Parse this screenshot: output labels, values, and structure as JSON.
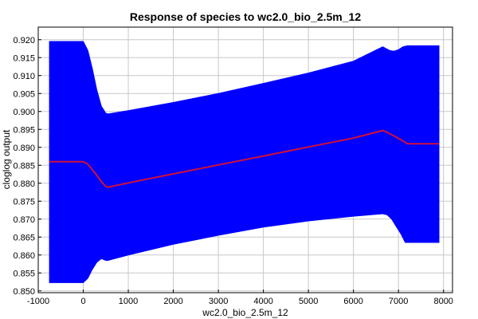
{
  "chart_data": {
    "type": "area",
    "title": "Response of species to wc2.0_bio_2.5m_12",
    "xlabel": "wc2.0_bio_2.5m_12",
    "ylabel": "cloglog output",
    "xlim": [
      -1000,
      8200
    ],
    "ylim": [
      0.8495,
      0.9235
    ],
    "grid": true,
    "xticks": [
      -1000,
      0,
      1000,
      2000,
      3000,
      4000,
      5000,
      6000,
      7000,
      8000
    ],
    "yticks": [
      0.85,
      0.855,
      0.86,
      0.865,
      0.87,
      0.875,
      0.88,
      0.885,
      0.89,
      0.895,
      0.9,
      0.905,
      0.91,
      0.915,
      0.92
    ],
    "series": [
      {
        "role": "upper",
        "color": "#0000ff",
        "x": [
          -750,
          0,
          100,
          200,
          300,
          400,
          500,
          550,
          1000,
          2000,
          3000,
          4000,
          5000,
          6000,
          6650,
          6800,
          6900,
          7000,
          7100,
          7200,
          7900
        ],
        "y": [
          0.9195,
          0.9195,
          0.917,
          0.912,
          0.906,
          0.9015,
          0.8995,
          0.8993,
          0.9002,
          0.9025,
          0.905,
          0.9078,
          0.9107,
          0.914,
          0.918,
          0.917,
          0.9168,
          0.9172,
          0.918,
          0.9183,
          0.9183
        ]
      },
      {
        "role": "lower",
        "color": "#0000ff",
        "x": [
          -750,
          0,
          100,
          200,
          300,
          400,
          500,
          550,
          1000,
          2000,
          3000,
          4000,
          5000,
          6000,
          6650,
          6750,
          6850,
          6950,
          7050,
          7150,
          7900
        ],
        "y": [
          0.8523,
          0.8523,
          0.8535,
          0.856,
          0.858,
          0.859,
          0.8585,
          0.8585,
          0.86,
          0.863,
          0.8655,
          0.8678,
          0.8695,
          0.8708,
          0.8715,
          0.8712,
          0.87,
          0.868,
          0.866,
          0.8635,
          0.8635
        ]
      },
      {
        "role": "mean",
        "color": "#d0103a",
        "x": [
          -750,
          0,
          100,
          200,
          300,
          400,
          500,
          550,
          1000,
          2000,
          3000,
          4000,
          5000,
          6000,
          6650,
          6750,
          7000,
          7200,
          7900
        ],
        "y": [
          0.886,
          0.886,
          0.8853,
          0.8838,
          0.8822,
          0.8805,
          0.8791,
          0.8789,
          0.8801,
          0.8826,
          0.8851,
          0.8876,
          0.8901,
          0.8926,
          0.8947,
          0.8942,
          0.8925,
          0.891,
          0.891
        ]
      }
    ]
  }
}
